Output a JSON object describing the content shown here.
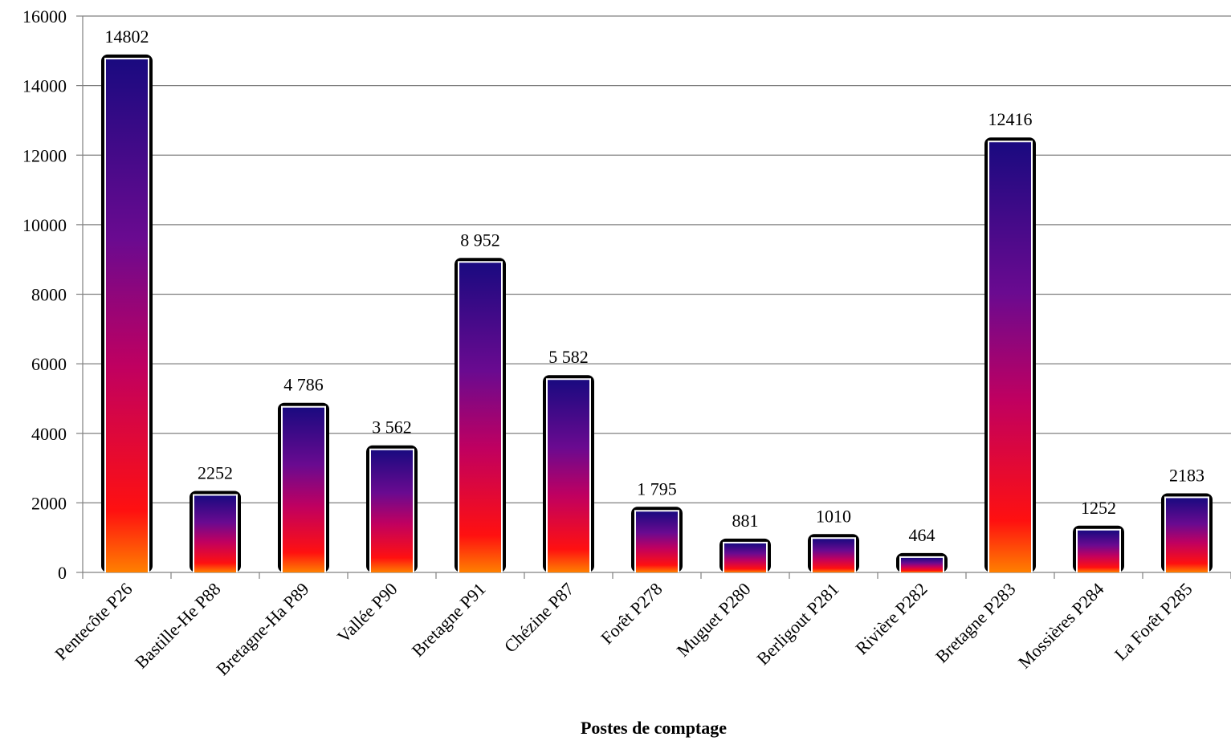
{
  "chart_data": {
    "type": "bar",
    "title": "",
    "xlabel": "Postes de comptage",
    "ylabel": "",
    "ylim": [
      0,
      16000
    ],
    "yticks": [
      0,
      2000,
      4000,
      6000,
      8000,
      10000,
      12000,
      14000,
      16000
    ],
    "ytick_labels": [
      "0",
      "2000",
      "4000",
      "6000",
      "8000",
      "10000",
      "12000",
      "14000",
      "16000"
    ],
    "grid": true,
    "legend": "none",
    "categories": [
      "Pentecôte  P26",
      "Bastille-He P88",
      "Bretagne-Ha P89",
      "Vallée  P90",
      "Bretagne  P91",
      "Chézine P87",
      "Forêt P278",
      "Muguet P280",
      "Berligout P281",
      "Rivière P282",
      "Bretagne P283",
      "Mossières P284",
      "La Forêt P285"
    ],
    "values": [
      14802,
      2252,
      4786,
      3562,
      8952,
      5582,
      1795,
      881,
      1010,
      464,
      12416,
      1252,
      2183
    ],
    "data_labels": [
      "14802",
      "2252",
      "4 786",
      "3 562",
      "8 952",
      "5 582",
      "1 795",
      "881",
      "1010",
      "464",
      "12416",
      "1252",
      "2183"
    ],
    "colors": {
      "gradient_top": "#1a0a80",
      "gradient_mid_upper": "#6a0a90",
      "gradient_mid": "#c00060",
      "gradient_lower": "#ff1010",
      "gradient_bottom": "#ff8000",
      "bar_border": "#000000",
      "bar_inner_edge": "#ffffff",
      "grid": "#808080"
    }
  }
}
